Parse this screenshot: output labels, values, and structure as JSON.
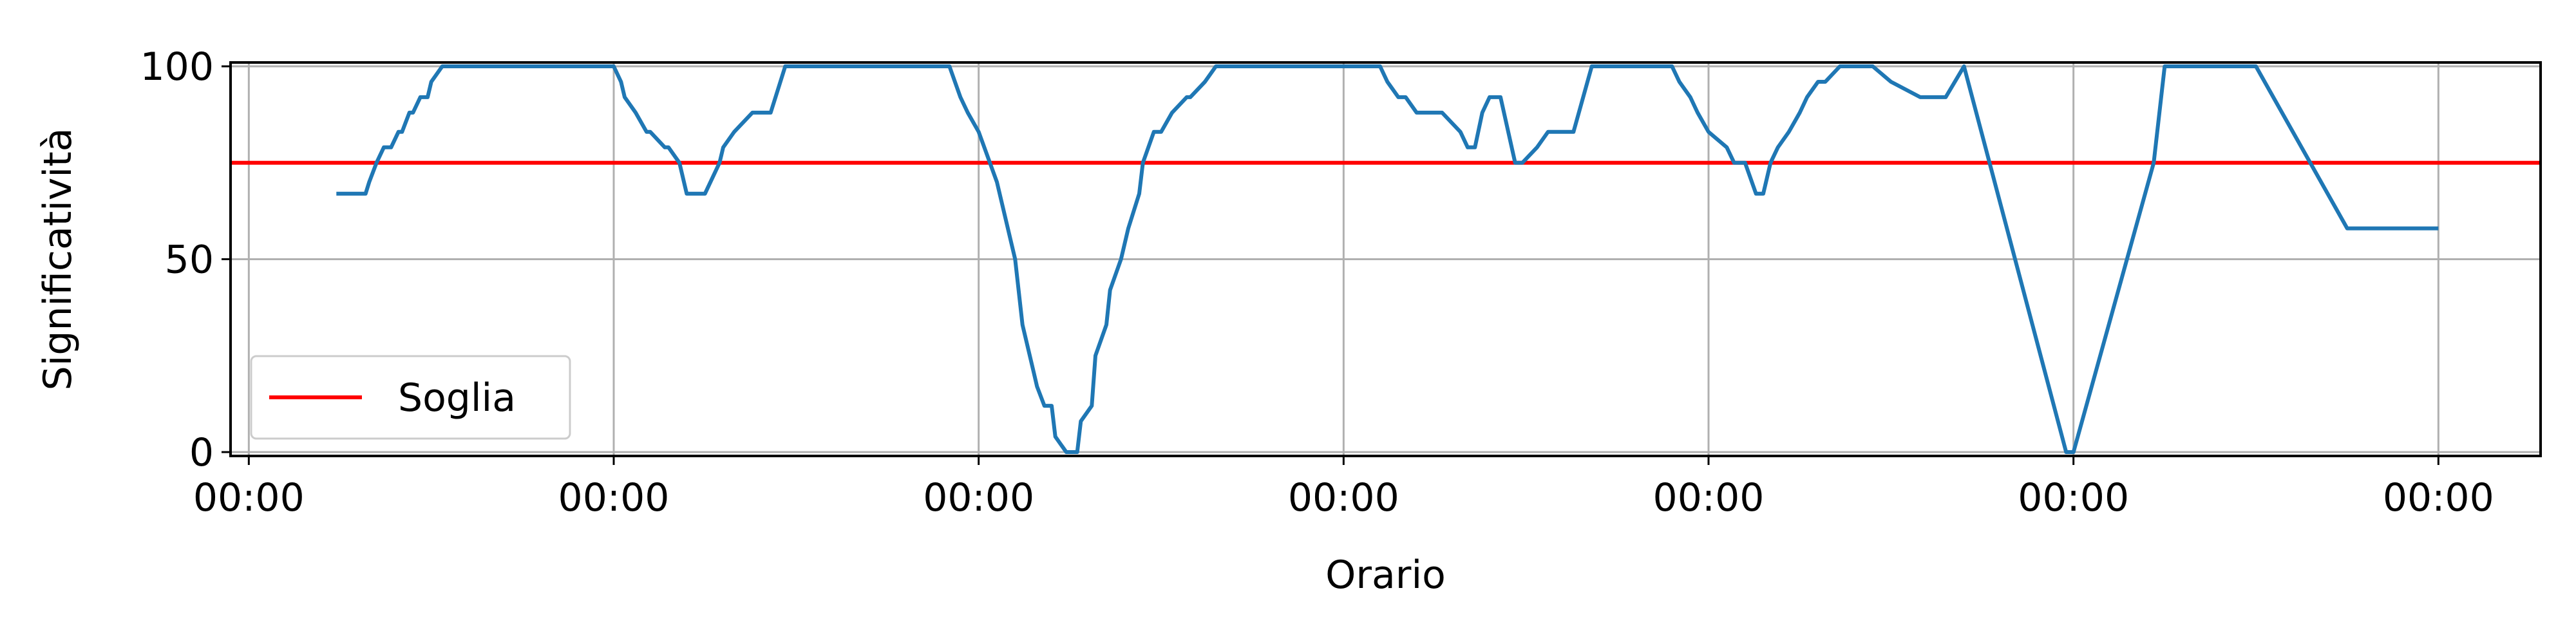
{
  "chart_data": {
    "type": "line",
    "xlabel": "Orario",
    "ylabel": "Significatività",
    "x_tick_labels": [
      "00:00",
      "00:00",
      "00:00",
      "00:00",
      "00:00",
      "00:00",
      "00:00"
    ],
    "y_ticks": [
      0,
      50,
      100
    ],
    "ylim": [
      0,
      100
    ],
    "xlim": [
      -0.05,
      6.28
    ],
    "grid": true,
    "legend_position": "lower-left",
    "threshold": {
      "name": "Soglia",
      "value": 75,
      "color": "#ff0000"
    },
    "series": [
      {
        "color": "#1f77b4",
        "x": [
          0.24,
          0.32,
          0.33,
          0.35,
          0.37,
          0.39,
          0.41,
          0.42,
          0.44,
          0.45,
          0.47,
          0.49,
          0.5,
          0.53,
          0.56,
          0.58,
          1.0,
          1.02,
          1.03,
          1.06,
          1.09,
          1.1,
          1.14,
          1.15,
          1.18,
          1.2,
          1.22,
          1.25,
          1.29,
          1.3,
          1.33,
          1.38,
          1.43,
          1.47,
          1.9,
          1.92,
          1.95,
          1.97,
          2.0,
          2.05,
          2.1,
          2.12,
          2.15,
          2.16,
          2.18,
          2.2,
          2.21,
          2.24,
          2.27,
          2.28,
          2.31,
          2.32,
          2.35,
          2.36,
          2.39,
          2.41,
          2.44,
          2.45,
          2.48,
          2.5,
          2.53,
          2.57,
          2.58,
          2.62,
          2.65,
          2.68,
          3.1,
          3.12,
          3.15,
          3.17,
          3.2,
          3.27,
          3.32,
          3.34,
          3.36,
          3.38,
          3.4,
          3.43,
          3.47,
          3.49,
          3.53,
          3.56,
          3.58,
          3.63,
          3.68,
          3.72,
          3.9,
          3.92,
          3.95,
          3.97,
          4.0,
          4.05,
          4.07,
          4.1,
          4.13,
          4.15,
          4.17,
          4.19,
          4.22,
          4.25,
          4.27,
          4.3,
          4.32,
          4.36,
          4.4,
          4.45,
          4.5,
          4.58,
          4.62,
          4.65,
          4.7,
          4.98,
          5.0,
          5.22,
          5.25,
          5.45,
          5.5,
          5.75,
          5.82,
          5.88,
          6.0
        ],
        "y": [
          67,
          67,
          70,
          75,
          79,
          79,
          83,
          83,
          88,
          88,
          92,
          92,
          96,
          100,
          100,
          100,
          100,
          96,
          92,
          88,
          83,
          83,
          79,
          79,
          75,
          67,
          67,
          67,
          75,
          79,
          83,
          88,
          88,
          100,
          100,
          100,
          92,
          88,
          83,
          70,
          50,
          33,
          21,
          17,
          12,
          12,
          4,
          0,
          0,
          8,
          12,
          25,
          33,
          42,
          50,
          58,
          67,
          75,
          83,
          83,
          88,
          92,
          92,
          96,
          100,
          100,
          100,
          96,
          92,
          92,
          88,
          88,
          83,
          79,
          79,
          88,
          92,
          92,
          75,
          75,
          79,
          83,
          83,
          83,
          100,
          100,
          100,
          96,
          92,
          88,
          83,
          79,
          75,
          75,
          67,
          67,
          75,
          79,
          83,
          88,
          92,
          96,
          96,
          100,
          100,
          100,
          96,
          92,
          92,
          92,
          100,
          0,
          0,
          75,
          100,
          100,
          100,
          58,
          58,
          58,
          58
        ]
      }
    ]
  }
}
